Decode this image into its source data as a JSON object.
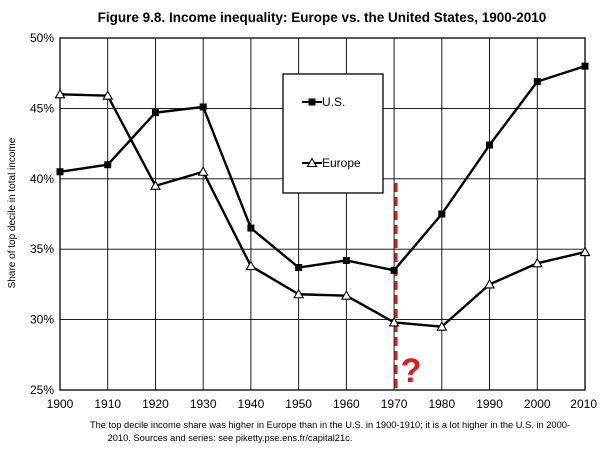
{
  "chart_data": {
    "type": "line",
    "title": "Figure 9.8. Income inequality: Europe vs. the United States, 1900-2010",
    "xlabel": "",
    "ylabel": "Share of top decile in total income",
    "x": [
      1900,
      1910,
      1920,
      1930,
      1940,
      1950,
      1960,
      1970,
      1980,
      1990,
      2000,
      2010
    ],
    "x_tick_labels": [
      "1900",
      "1910",
      "1920",
      "1930",
      "1940",
      "1950",
      "1960",
      "1970",
      "1980",
      "1990",
      "2000",
      "2010"
    ],
    "y_tick_labels": [
      "25%",
      "30%",
      "35%",
      "40%",
      "45%",
      "50%"
    ],
    "y_ticks": [
      0.25,
      0.3,
      0.35,
      0.4,
      0.45,
      0.5
    ],
    "xlim": [
      1900,
      2010
    ],
    "ylim": [
      0.25,
      0.5
    ],
    "grid": true,
    "legend_position": "top-center",
    "series": [
      {
        "name": "U.S.",
        "marker": "square",
        "color": "#000000",
        "values": [
          0.405,
          0.41,
          0.447,
          0.451,
          0.365,
          0.337,
          0.342,
          0.335,
          0.375,
          0.424,
          0.469,
          0.48
        ]
      },
      {
        "name": "Europe",
        "marker": "triangle",
        "color": "#000000",
        "values": [
          0.46,
          0.459,
          0.395,
          0.405,
          0.338,
          0.318,
          0.317,
          0.298,
          0.295,
          0.325,
          0.34,
          0.348
        ]
      }
    ],
    "annotations": [
      {
        "type": "vertical-dashed-line",
        "x": 1970,
        "color": "#e01b1b"
      },
      {
        "type": "text",
        "text": "?",
        "color": "#e01b1b"
      }
    ],
    "note": "The top decile income share was higher in Europe than in the U.S. in 1900-1910; it is a lot higher in the U.S. in 2000-2010. Sources and series: see piketty.pse.ens.fr/capital21c.",
    "note_lines": [
      "The top decile income share was higher in Europe than in the U.S. in 1900-1910; it is a lot higher in the U.S. in 2000-",
      "2010. Sources and series: see piketty.pse.ens.fr/capital21c."
    ]
  }
}
